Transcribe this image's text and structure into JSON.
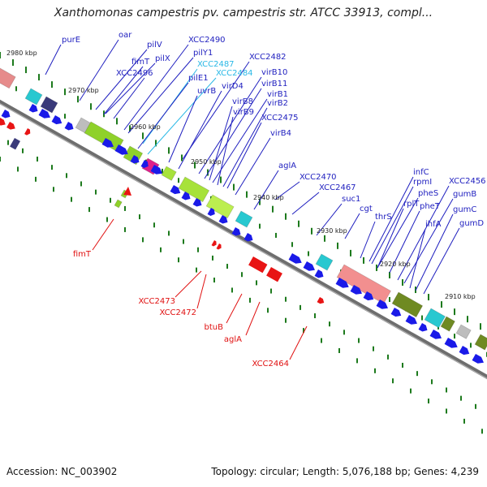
{
  "header": {
    "title": "Xanthomonas campestris pv. campestris str. ATCC 33913, compl..."
  },
  "footer": {
    "accession": "Accession: NC_003902",
    "summary": "Topology: circular; Length: 5,076,188 bp; Genes: 4,239"
  },
  "colors": {
    "label_blue": "#1f1fbf",
    "label_cyan": "#29b8e6",
    "label_red": "#e01010",
    "backbone": "#6e6e6e",
    "tick_green": "#1d7a1d"
  },
  "kbp_markers": [
    {
      "label": "2980 kbp",
      "kbp": 2980
    },
    {
      "label": "2970 kbp",
      "kbp": 2970
    },
    {
      "label": "2960 kbp",
      "kbp": 2960
    },
    {
      "label": "2950 kbp",
      "kbp": 2950
    },
    {
      "label": "2940 kbp",
      "kbp": 2940
    },
    {
      "label": "2930 kbp",
      "kbp": 2930
    },
    {
      "label": "2920 kbp",
      "kbp": 2920
    },
    {
      "label": "2910 kbp",
      "kbp": 2910
    }
  ],
  "gene_labels_forward": [
    {
      "name": "purE",
      "color": "blue"
    },
    {
      "name": "oar",
      "color": "blue"
    },
    {
      "name": "pilV",
      "color": "blue"
    },
    {
      "name": "pilX",
      "color": "blue"
    },
    {
      "name": "fimT",
      "color": "blue"
    },
    {
      "name": "XCC2496",
      "color": "blue"
    },
    {
      "name": "XCC2490",
      "color": "blue"
    },
    {
      "name": "pilY1",
      "color": "blue"
    },
    {
      "name": "XCC2487",
      "color": "cyan"
    },
    {
      "name": "XCC2484",
      "color": "cyan"
    },
    {
      "name": "pilE1",
      "color": "blue"
    },
    {
      "name": "uvrB",
      "color": "blue"
    },
    {
      "name": "virD4",
      "color": "blue"
    },
    {
      "name": "XCC2482",
      "color": "blue"
    },
    {
      "name": "virB10",
      "color": "blue"
    },
    {
      "name": "virB11",
      "color": "blue"
    },
    {
      "name": "virB8",
      "color": "blue"
    },
    {
      "name": "virB1",
      "color": "blue"
    },
    {
      "name": "virB9",
      "color": "blue"
    },
    {
      "name": "virB2",
      "color": "blue"
    },
    {
      "name": "XCC2475",
      "color": "blue"
    },
    {
      "name": "virB4",
      "color": "blue"
    },
    {
      "name": "aglA",
      "color": "blue"
    },
    {
      "name": "XCC2470",
      "color": "blue"
    },
    {
      "name": "XCC2467",
      "color": "blue"
    },
    {
      "name": "suc1",
      "color": "blue"
    },
    {
      "name": "cgt",
      "color": "blue"
    },
    {
      "name": "thrS",
      "color": "blue"
    },
    {
      "name": "infC",
      "color": "blue"
    },
    {
      "name": "rpmI",
      "color": "blue"
    },
    {
      "name": "pheS",
      "color": "blue"
    },
    {
      "name": "rplT",
      "color": "blue"
    },
    {
      "name": "pheT",
      "color": "blue"
    },
    {
      "name": "XCC2456",
      "color": "blue"
    },
    {
      "name": "gumB",
      "color": "blue"
    },
    {
      "name": "ihfA",
      "color": "blue"
    },
    {
      "name": "gumC",
      "color": "blue"
    },
    {
      "name": "gumD",
      "color": "blue"
    }
  ],
  "gene_labels_reverse": [
    {
      "name": "fimT",
      "color": "red"
    },
    {
      "name": "XCC2473",
      "color": "red"
    },
    {
      "name": "XCC2472",
      "color": "red"
    },
    {
      "name": "btuB",
      "color": "red"
    },
    {
      "name": "aglA",
      "color": "red"
    },
    {
      "name": "XCC2464",
      "color": "red"
    }
  ]
}
